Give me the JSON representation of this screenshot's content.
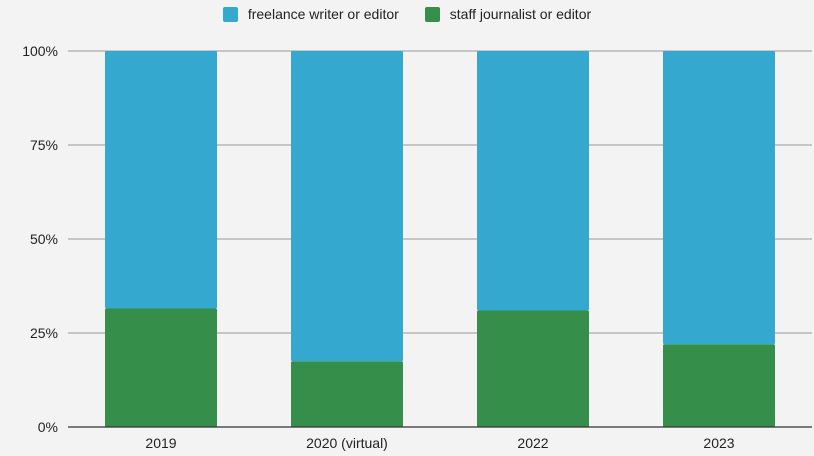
{
  "chart_data": {
    "type": "bar",
    "stacked": true,
    "normalized_percent": true,
    "categories": [
      "2019",
      "2020 (virtual)",
      "2022",
      "2023"
    ],
    "series": [
      {
        "name": "staff journalist or editor",
        "values": [
          31.5,
          17.5,
          31,
          22
        ],
        "color": "#358e4a"
      },
      {
        "name": "freelance writer or editor",
        "values": [
          68.5,
          82.5,
          69,
          78
        ],
        "color": "#34a8cf"
      }
    ],
    "legend_order": [
      "freelance writer or editor",
      "staff journalist or editor"
    ],
    "legend_position": "top-center",
    "ylim": [
      0,
      100
    ],
    "yticks": [
      0,
      25,
      50,
      75,
      100
    ],
    "ytick_labels": [
      "0%",
      "25%",
      "50%",
      "75%",
      "100%"
    ],
    "grid": true,
    "title": "",
    "xlabel": "",
    "ylabel": ""
  }
}
